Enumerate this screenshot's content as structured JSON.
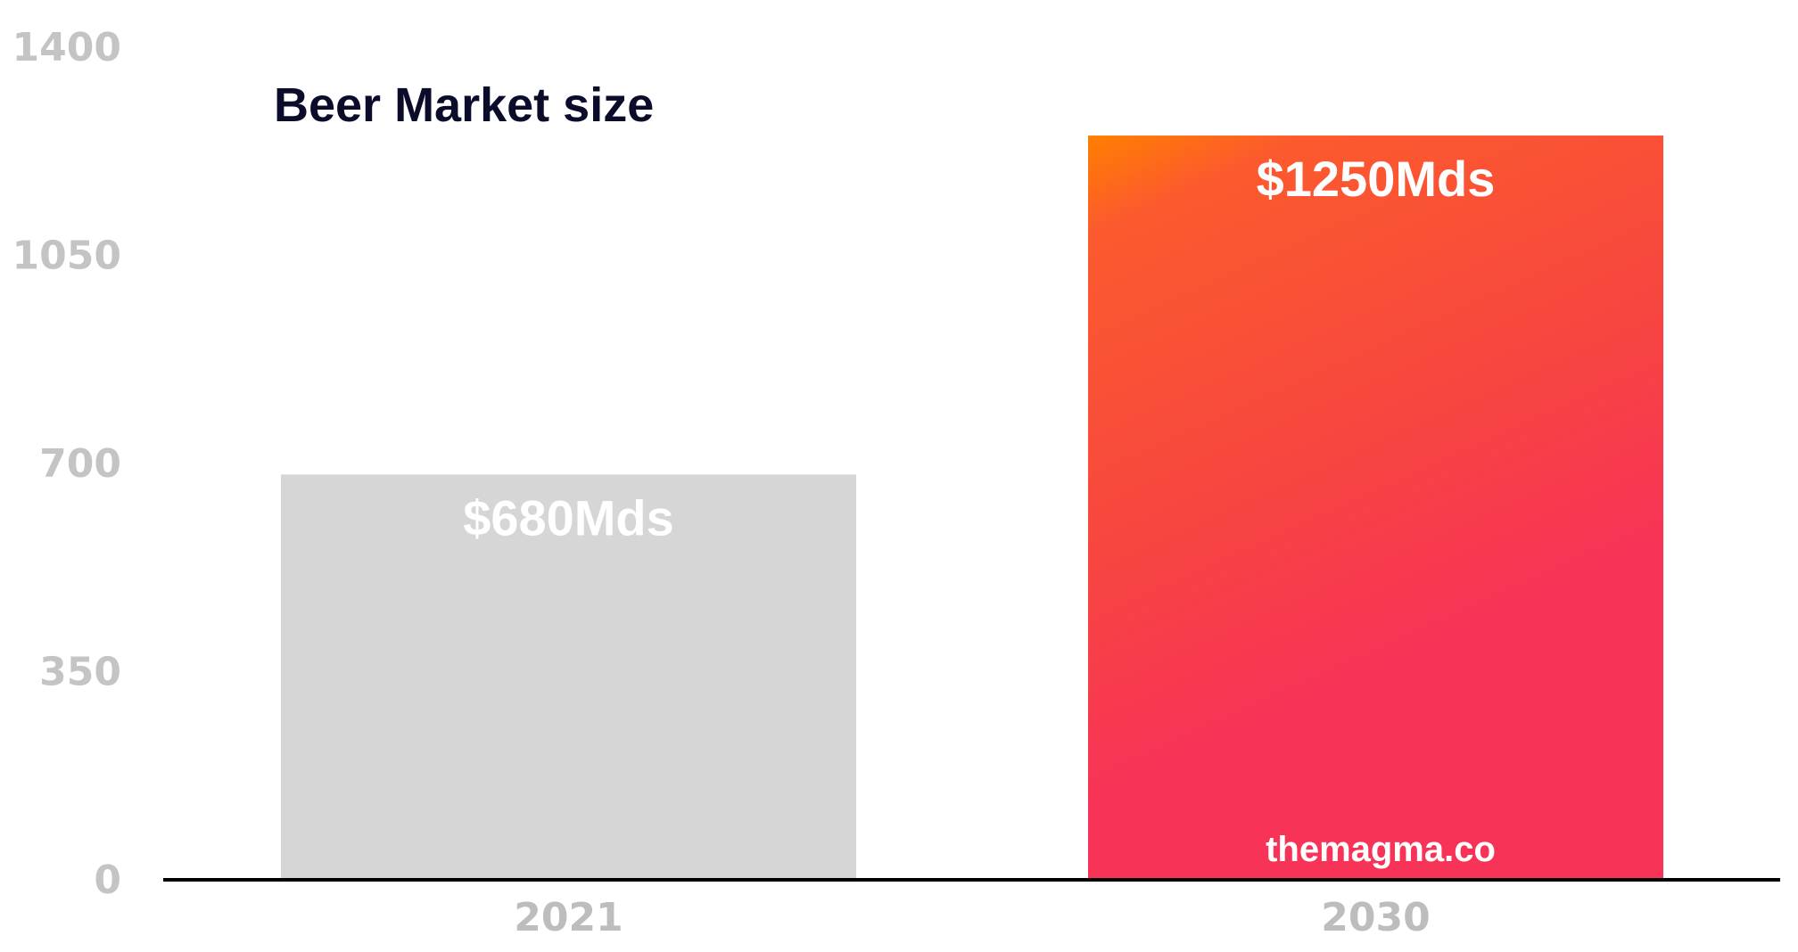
{
  "chart_data": {
    "type": "bar",
    "title": "Beer Market size",
    "categories": [
      "2021",
      "2030"
    ],
    "values": [
      680,
      1250
    ],
    "data_labels": [
      "$680Mds",
      "$1250Mds"
    ],
    "yticks": [
      "0",
      "350",
      "700",
      "1050",
      "1400"
    ],
    "ylim": [
      0,
      1400
    ],
    "xlabel": "",
    "ylabel": "",
    "grid": false,
    "colors": [
      "#d6d6d6",
      "gradient:#ff7f00-#f73357"
    ],
    "watermark": "themagma.co"
  }
}
